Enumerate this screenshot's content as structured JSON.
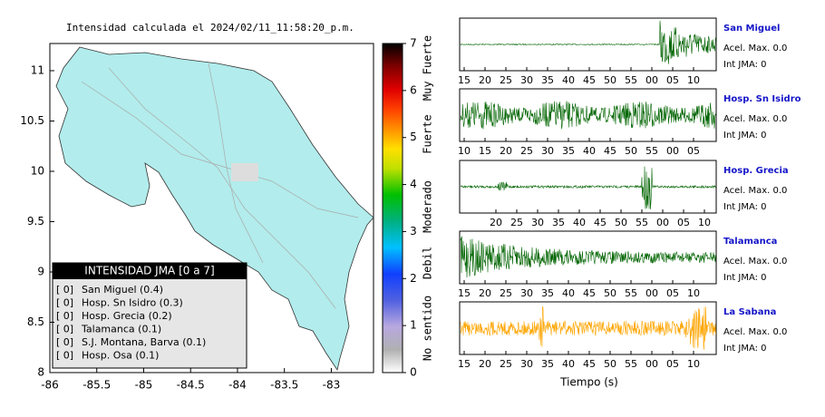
{
  "map": {
    "title": "Intensidad calculada el 2024/02/11_11:58:20_p.m.",
    "xlim": [
      -86,
      -82.55
    ],
    "ylim": [
      8,
      11.27
    ],
    "xticks": [
      -86,
      -85.5,
      -85,
      -84.5,
      -84,
      -83.5,
      -83
    ],
    "yticks": [
      8,
      8.5,
      9,
      9.5,
      10,
      10.5,
      11
    ]
  },
  "colorbar": {
    "lim": [
      0,
      7
    ],
    "ticks": [
      0,
      1,
      2,
      3,
      4,
      5,
      6,
      7
    ],
    "labels": [
      "No sentido",
      "Debil",
      "Moderado",
      "Fuerte",
      "Muy Fuerte"
    ]
  },
  "legend": {
    "title": "INTENSIDAD JMA [0 a 7]",
    "rows": [
      {
        "level": "[ 0]",
        "name": "San Miguel (0.4)"
      },
      {
        "level": "[ 0]",
        "name": "Hosp. Sn Isidro (0.3)"
      },
      {
        "level": "[ 0]",
        "name": "Hosp. Grecia (0.2)"
      },
      {
        "level": "[ 0]",
        "name": "Talamanca (0.1)"
      },
      {
        "level": "[ 0]",
        "name": "S.J. Montana, Barva (0.1)"
      },
      {
        "level": "[ 0]",
        "name": "Hosp. Osa (0.1)"
      }
    ]
  },
  "stations": [
    {
      "name": "San Miguel",
      "color": "#006400",
      "accel": "Acel. Max. 0.0",
      "jma": "Int JMA: 0",
      "ticks": [
        "15",
        "20",
        "25",
        "30",
        "35",
        "40",
        "45",
        "50",
        "55",
        "00",
        "05",
        "10"
      ]
    },
    {
      "name": "Hosp. Sn Isidro",
      "color": "#006400",
      "accel": "Acel. Max. 0.0",
      "jma": "Int JMA: 0",
      "ticks": [
        "10",
        "15",
        "20",
        "25",
        "30",
        "35",
        "40",
        "45",
        "50",
        "55",
        "00",
        "05"
      ]
    },
    {
      "name": "Hosp. Grecia",
      "color": "#006400",
      "accel": "Acel. Max. 0.0",
      "jma": "Int JMA: 0",
      "ticks": [
        "20",
        "25",
        "30",
        "35",
        "40",
        "45",
        "50",
        "55",
        "00",
        "05",
        "10"
      ]
    },
    {
      "name": "Talamanca",
      "color": "#006400",
      "accel": "Acel. Max. 0.0",
      "jma": "Int JMA: 0",
      "ticks": [
        "15",
        "20",
        "25",
        "30",
        "35",
        "40",
        "45",
        "50",
        "55",
        "00",
        "05",
        "10"
      ]
    },
    {
      "name": "La Sabana",
      "color": "#ffa500",
      "accel": "Acel. Max. 0.0",
      "jma": "Int JMA: 0",
      "ticks": [
        "15",
        "20",
        "25",
        "30",
        "35",
        "40",
        "45",
        "50",
        "55",
        "00",
        "05",
        "10"
      ]
    }
  ],
  "xlabel": "Tiempo (s)"
}
